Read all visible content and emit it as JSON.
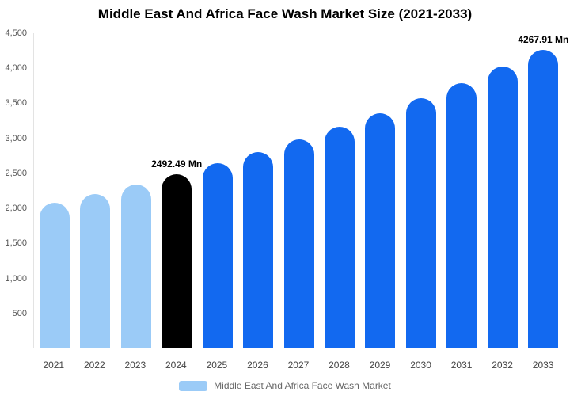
{
  "title": "Middle East And Africa Face Wash Market Size (2021-2033)",
  "legend": {
    "label": "Middle East And Africa Face Wash Market",
    "swatch_color": "#9bcbf7"
  },
  "colors": {
    "historical_bar": "#9bcbf7",
    "base_year_bar": "#000000",
    "forecast_bar": "#1269f0",
    "axis_text": "#555555",
    "title_text": "#000000"
  },
  "chart_data": {
    "type": "bar",
    "title": "Middle East And Africa Face Wash Market Size (2021-2033)",
    "xlabel": "",
    "ylabel": "",
    "ylim": [
      0,
      4500
    ],
    "yticks": [
      500,
      1000,
      1500,
      2000,
      2500,
      3000,
      3500,
      4000,
      4500
    ],
    "grid": false,
    "legend_position": "bottom",
    "categories": [
      "2021",
      "2022",
      "2023",
      "2024",
      "2025",
      "2026",
      "2027",
      "2028",
      "2029",
      "2030",
      "2031",
      "2032",
      "2033"
    ],
    "series": [
      {
        "name": "Middle East And Africa Face Wash Market",
        "values": [
          2082,
          2210,
          2346,
          2492.49,
          2646,
          2809,
          2982,
          3166,
          3361,
          3568,
          3788,
          4021,
          4267.91
        ]
      }
    ],
    "bar_colors": [
      "#9bcbf7",
      "#9bcbf7",
      "#9bcbf7",
      "#000000",
      "#1269f0",
      "#1269f0",
      "#1269f0",
      "#1269f0",
      "#1269f0",
      "#1269f0",
      "#1269f0",
      "#1269f0",
      "#1269f0"
    ],
    "annotations": [
      {
        "category": "2024",
        "text": "2492.49 Mn"
      },
      {
        "category": "2033",
        "text": "4267.91 Mn"
      }
    ]
  }
}
